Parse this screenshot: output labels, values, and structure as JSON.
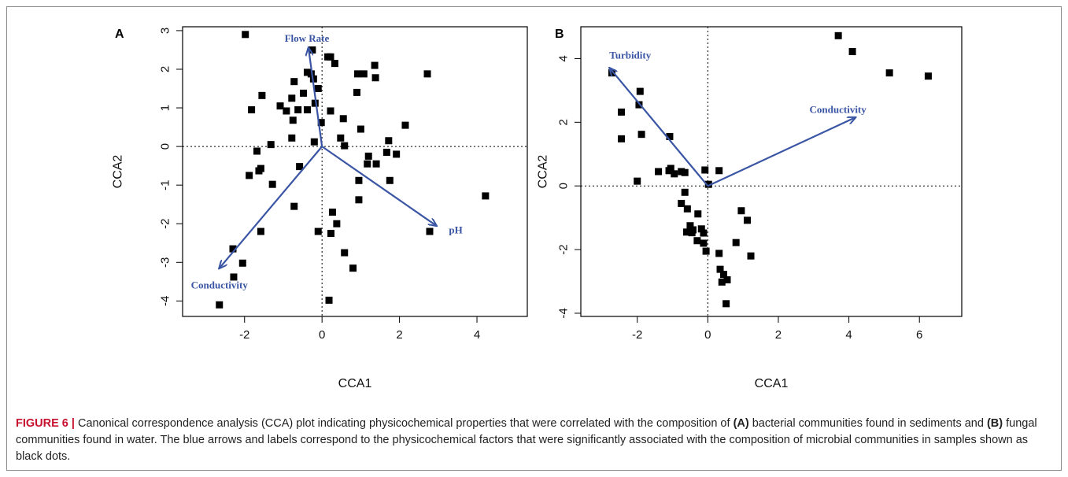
{
  "caption": {
    "label": "FIGURE 6 |",
    "p1": " Canonical correspondence analysis (CCA) plot indicating physicochemical properties that were correlated with the composition of ",
    "b1": "(A)",
    "p2": " bacterial communities found in sediments and ",
    "b2": "(B)",
    "p3": " fungal communities found in water. The blue arrows and labels correspond to the physicochemical factors that were significantly associated with the composition of microbial communities in samples shown as black dots."
  },
  "colors": {
    "arrow": "#3a55a4",
    "points": "#000000",
    "caption_label": "#c8102e"
  },
  "chart_data": [
    {
      "panel": "A",
      "type": "scatter",
      "xlabel": "CCA1",
      "ylabel": "CCA2",
      "xlim": [
        -3.6,
        5.3
      ],
      "ylim": [
        -4.4,
        3.1
      ],
      "xticks": [
        -2,
        0,
        2,
        4
      ],
      "yticks": [
        -4,
        -3,
        -2,
        -1,
        0,
        1,
        2,
        3
      ],
      "reference_lines": {
        "x": 0,
        "y": 0,
        "style": "dotted"
      },
      "points": [
        [
          -1.98,
          2.9
        ],
        [
          -0.25,
          2.5
        ],
        [
          0.15,
          2.32
        ],
        [
          0.22,
          2.32
        ],
        [
          0.33,
          2.15
        ],
        [
          1.36,
          2.1
        ],
        [
          2.72,
          1.88
        ],
        [
          -0.38,
          1.92
        ],
        [
          -0.28,
          1.88
        ],
        [
          -0.22,
          1.75
        ],
        [
          0.92,
          1.88
        ],
        [
          1.08,
          1.88
        ],
        [
          1.38,
          1.78
        ],
        [
          -0.72,
          1.68
        ],
        [
          -0.1,
          1.5
        ],
        [
          0.9,
          1.4
        ],
        [
          -1.55,
          1.32
        ],
        [
          -0.48,
          1.38
        ],
        [
          -0.78,
          1.25
        ],
        [
          -0.18,
          1.12
        ],
        [
          -1.08,
          1.05
        ],
        [
          -0.92,
          0.92
        ],
        [
          -0.38,
          0.95
        ],
        [
          -0.62,
          0.95
        ],
        [
          0.22,
          0.92
        ],
        [
          0.55,
          0.72
        ],
        [
          -1.82,
          0.95
        ],
        [
          -0.75,
          0.68
        ],
        [
          -0.02,
          0.62
        ],
        [
          1.0,
          0.45
        ],
        [
          2.15,
          0.55
        ],
        [
          -0.78,
          0.22
        ],
        [
          -0.2,
          0.12
        ],
        [
          0.48,
          0.22
        ],
        [
          0.58,
          0.02
        ],
        [
          1.72,
          0.15
        ],
        [
          -1.32,
          0.05
        ],
        [
          -1.68,
          -0.12
        ],
        [
          1.67,
          -0.15
        ],
        [
          1.92,
          -0.2
        ],
        [
          1.2,
          -0.25
        ],
        [
          -1.58,
          -0.57
        ],
        [
          -1.63,
          -0.63
        ],
        [
          1.17,
          -0.45
        ],
        [
          1.4,
          -0.45
        ],
        [
          -0.58,
          -0.52
        ],
        [
          -1.88,
          -0.75
        ],
        [
          -1.28,
          -0.98
        ],
        [
          0.95,
          -0.88
        ],
        [
          1.75,
          -0.88
        ],
        [
          0.95,
          -1.38
        ],
        [
          -0.72,
          -1.55
        ],
        [
          0.27,
          -1.7
        ],
        [
          0.38,
          -2.0
        ],
        [
          -1.58,
          -2.2
        ],
        [
          -0.1,
          -2.2
        ],
        [
          0.23,
          -2.25
        ],
        [
          2.78,
          -2.2
        ],
        [
          0.58,
          -2.75
        ],
        [
          -2.3,
          -2.65
        ],
        [
          -2.05,
          -3.02
        ],
        [
          0.8,
          -3.15
        ],
        [
          -2.28,
          -3.38
        ],
        [
          0.18,
          -3.98
        ],
        [
          -2.65,
          -4.1
        ],
        [
          4.22,
          -1.28
        ]
      ],
      "vectors": [
        {
          "label": "Flow Rate",
          "x": -0.35,
          "y": 2.55
        },
        {
          "label": "pH",
          "x": 2.95,
          "y": -2.05
        },
        {
          "label": "Conductivity",
          "x": -2.65,
          "y": -3.15
        }
      ]
    },
    {
      "panel": "B",
      "type": "scatter",
      "xlabel": "CCA1",
      "ylabel": "CCA2",
      "xlim": [
        -3.6,
        7.2
      ],
      "ylim": [
        -4.1,
        5.0
      ],
      "xticks": [
        -2,
        0,
        2,
        4,
        6
      ],
      "yticks": [
        -4,
        -2,
        0,
        2,
        4
      ],
      "reference_lines": {
        "x": 0,
        "y": 0,
        "style": "dotted"
      },
      "points": [
        [
          3.7,
          4.72
        ],
        [
          4.1,
          4.22
        ],
        [
          5.15,
          3.55
        ],
        [
          6.25,
          3.45
        ],
        [
          -2.72,
          3.55
        ],
        [
          -1.92,
          2.97
        ],
        [
          -1.95,
          2.55
        ],
        [
          -2.45,
          2.32
        ],
        [
          -1.88,
          1.62
        ],
        [
          -2.45,
          1.48
        ],
        [
          -1.08,
          1.55
        ],
        [
          -2.0,
          0.15
        ],
        [
          -1.4,
          0.45
        ],
        [
          -1.1,
          0.48
        ],
        [
          -1.05,
          0.55
        ],
        [
          -0.95,
          0.38
        ],
        [
          -0.75,
          0.45
        ],
        [
          -0.65,
          0.42
        ],
        [
          -0.08,
          0.5
        ],
        [
          0.32,
          0.48
        ],
        [
          0.02,
          0.05
        ],
        [
          -0.65,
          -0.2
        ],
        [
          -0.75,
          -0.55
        ],
        [
          -0.58,
          -0.72
        ],
        [
          -0.28,
          -0.88
        ],
        [
          -0.5,
          -1.25
        ],
        [
          -0.42,
          -1.38
        ],
        [
          -0.6,
          -1.45
        ],
        [
          -0.45,
          -1.47
        ],
        [
          -0.18,
          -1.35
        ],
        [
          -0.12,
          -1.48
        ],
        [
          -0.3,
          -1.72
        ],
        [
          -0.12,
          -1.8
        ],
        [
          -0.05,
          -2.05
        ],
        [
          0.32,
          -2.12
        ],
        [
          0.95,
          -0.78
        ],
        [
          1.12,
          -1.08
        ],
        [
          0.8,
          -1.78
        ],
        [
          1.22,
          -2.2
        ],
        [
          0.35,
          -2.62
        ],
        [
          0.45,
          -2.78
        ],
        [
          0.55,
          -2.95
        ],
        [
          0.4,
          -3.02
        ],
        [
          0.52,
          -3.7
        ]
      ],
      "vectors": [
        {
          "label": "Turbidity",
          "x": -2.78,
          "y": 3.7
        },
        {
          "label": "Conductivity",
          "x": 4.18,
          "y": 2.15
        }
      ]
    }
  ]
}
